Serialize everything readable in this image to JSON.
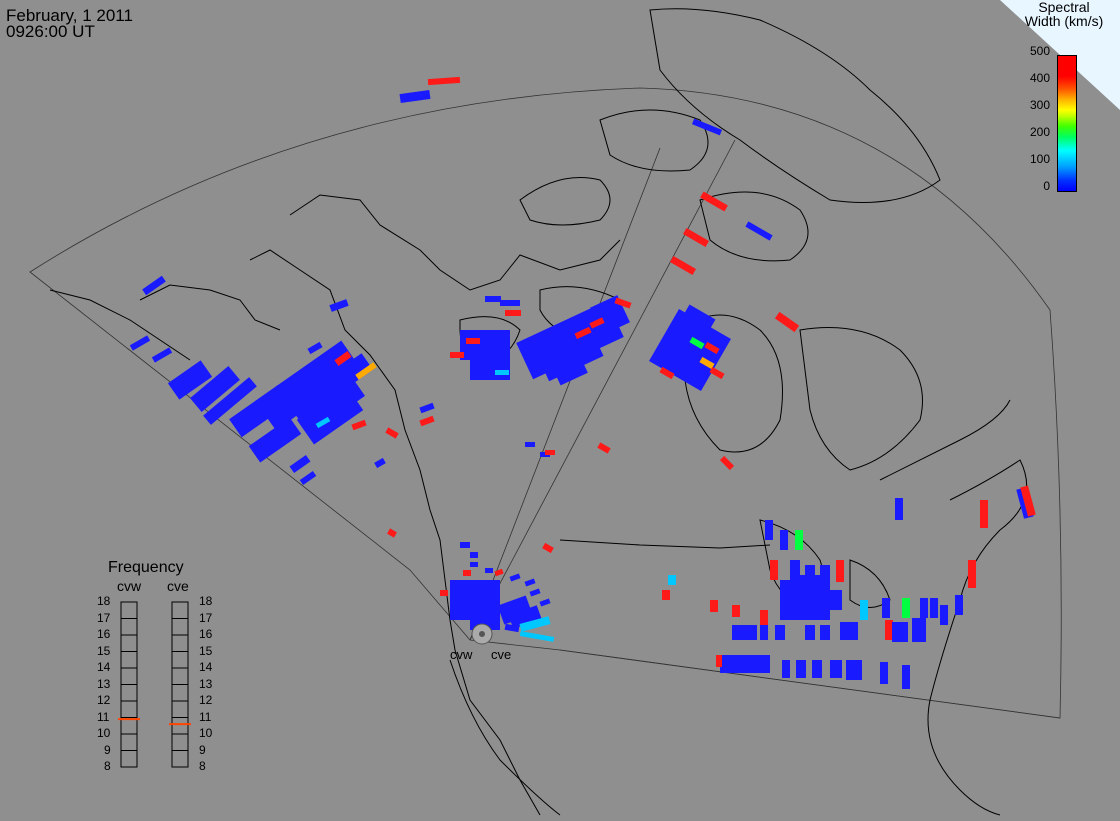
{
  "header": {
    "date": "February, 1 2011",
    "time": "0926:00 UT"
  },
  "colorbar": {
    "title_line1": "Spectral",
    "title_line2": "Width (km/s)",
    "ticks": [
      "500",
      "400",
      "300",
      "200",
      "100",
      "0"
    ]
  },
  "frequency_panel": {
    "title": "Frequency",
    "radars": [
      "cvw",
      "cve"
    ],
    "ticks": [
      "18",
      "17",
      "16",
      "15",
      "14",
      "13",
      "12",
      "11",
      "10",
      "9",
      "8"
    ],
    "cvw_value": 10.9,
    "cve_value": 10.6,
    "indicator_color": "#ff4400"
  },
  "map_labels": {
    "radar_left": "cvw",
    "radar_right": "cve"
  },
  "colors": {
    "background": "#8f8f8f",
    "low": "#1a1aff",
    "high": "#ff1a1a",
    "mid_cyan": "#00c8ff",
    "mid_green": "#00ff40",
    "corner": "#e8f6ff"
  }
}
